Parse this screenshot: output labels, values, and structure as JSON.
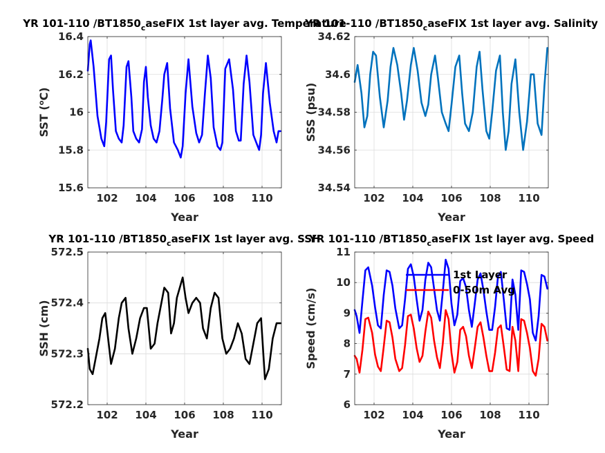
{
  "chart_data": [
    {
      "type": "line",
      "title": "YR 101-110 /BT1850_caseFIX 1st layer avg. Temperature",
      "xlabel": "Year",
      "ylabel": "SST (°C)",
      "xlim": [
        101,
        111
      ],
      "ylim": [
        15.6,
        16.4
      ],
      "xticks": [
        "102",
        "104",
        "106",
        "108",
        "110"
      ],
      "yticks": [
        "15.6",
        "15.8",
        "16",
        "16.2",
        "16.4"
      ],
      "grid": true,
      "series": [
        {
          "color": "#0000ff",
          "x": [
            101.0,
            101.1,
            101.15,
            101.3,
            101.5,
            101.7,
            101.85,
            101.95,
            102.1,
            102.2,
            102.3,
            102.45,
            102.6,
            102.75,
            102.85,
            103.0,
            103.1,
            103.25,
            103.35,
            103.5,
            103.65,
            103.8,
            103.9,
            104.0,
            104.1,
            104.25,
            104.4,
            104.55,
            104.7,
            104.85,
            104.95,
            105.1,
            105.25,
            105.45,
            105.65,
            105.8,
            105.9,
            106.05,
            106.2,
            106.4,
            106.6,
            106.75,
            106.9,
            107.05,
            107.2,
            107.35,
            107.5,
            107.7,
            107.85,
            107.95,
            108.1,
            108.3,
            108.5,
            108.65,
            108.8,
            108.9,
            109.05,
            109.2,
            109.35,
            109.55,
            109.7,
            109.85,
            109.95,
            110.05,
            110.2,
            110.4,
            110.6,
            110.75,
            110.85,
            110.95
          ],
          "y": [
            16.22,
            16.36,
            16.38,
            16.24,
            15.98,
            15.86,
            15.82,
            15.95,
            16.28,
            16.3,
            16.12,
            15.9,
            15.86,
            15.84,
            15.93,
            16.24,
            16.27,
            16.08,
            15.9,
            15.86,
            15.84,
            15.91,
            16.16,
            16.24,
            16.08,
            15.93,
            15.86,
            15.84,
            15.9,
            16.07,
            16.2,
            16.26,
            16.02,
            15.84,
            15.8,
            15.76,
            15.82,
            16.1,
            16.28,
            16.03,
            15.89,
            15.84,
            15.88,
            16.1,
            16.3,
            16.18,
            15.92,
            15.82,
            15.8,
            15.84,
            16.23,
            16.28,
            16.12,
            15.9,
            15.85,
            15.85,
            16.15,
            16.3,
            16.16,
            15.88,
            15.84,
            15.8,
            15.88,
            16.1,
            16.26,
            16.05,
            15.9,
            15.84,
            15.9,
            15.9
          ]
        }
      ]
    },
    {
      "type": "line",
      "title": "YR 101-110 /BT1850_caseFIX 1st layer avg. Salinity",
      "xlabel": "Year",
      "ylabel": "SSS (psu)",
      "xlim": [
        101,
        111
      ],
      "ylim": [
        34.54,
        34.62
      ],
      "xticks": [
        "102",
        "104",
        "106",
        "108",
        "110"
      ],
      "yticks": [
        "34.54",
        "34.56",
        "34.58",
        "34.6",
        "34.62"
      ],
      "grid": true,
      "series": [
        {
          "color": "#0072bd",
          "x": [
            101.0,
            101.15,
            101.35,
            101.5,
            101.65,
            101.8,
            101.95,
            102.1,
            102.3,
            102.5,
            102.7,
            102.85,
            103.0,
            103.2,
            103.4,
            103.55,
            103.7,
            103.9,
            104.05,
            104.25,
            104.45,
            104.65,
            104.8,
            104.95,
            105.15,
            105.3,
            105.5,
            105.7,
            105.85,
            106.0,
            106.2,
            106.4,
            106.55,
            106.7,
            106.9,
            107.1,
            107.3,
            107.45,
            107.6,
            107.8,
            107.95,
            108.1,
            108.3,
            108.5,
            108.65,
            108.8,
            108.95,
            109.1,
            109.3,
            109.5,
            109.7,
            109.9,
            110.1,
            110.25,
            110.45,
            110.65,
            110.8,
            110.95
          ],
          "y": [
            34.596,
            34.605,
            34.59,
            34.572,
            34.578,
            34.6,
            34.612,
            34.61,
            34.588,
            34.572,
            34.586,
            34.604,
            34.614,
            34.605,
            34.59,
            34.576,
            34.586,
            34.605,
            34.614,
            34.602,
            34.585,
            34.578,
            34.584,
            34.6,
            34.61,
            34.598,
            34.58,
            34.574,
            34.57,
            34.584,
            34.604,
            34.61,
            34.59,
            34.574,
            34.57,
            34.58,
            34.604,
            34.612,
            34.592,
            34.57,
            34.566,
            34.58,
            34.602,
            34.61,
            34.58,
            34.56,
            34.57,
            34.595,
            34.608,
            34.58,
            34.56,
            34.575,
            34.6,
            34.6,
            34.574,
            34.568,
            34.594,
            34.614
          ]
        }
      ]
    },
    {
      "type": "line",
      "title": "YR 101-110 /BT1850_caseFIX 1st layer avg. SSH",
      "xlabel": "Year",
      "ylabel": "SSH (cm)",
      "xlim": [
        101,
        111
      ],
      "ylim": [
        572.2,
        572.5
      ],
      "xticks": [
        "102",
        "104",
        "106",
        "108",
        "110"
      ],
      "yticks": [
        "572.2",
        "572.3",
        "572.4",
        "572.5"
      ],
      "grid": true,
      "series": [
        {
          "color": "#000000",
          "x": [
            101.0,
            101.1,
            101.25,
            101.4,
            101.6,
            101.75,
            101.9,
            102.05,
            102.2,
            102.4,
            102.6,
            102.75,
            102.95,
            103.1,
            103.3,
            103.5,
            103.7,
            103.9,
            104.05,
            104.25,
            104.45,
            104.6,
            104.8,
            104.95,
            105.15,
            105.3,
            105.45,
            105.6,
            105.75,
            105.9,
            106.05,
            106.2,
            106.4,
            106.6,
            106.8,
            106.95,
            107.15,
            107.35,
            107.55,
            107.75,
            107.95,
            108.15,
            108.35,
            108.55,
            108.75,
            108.95,
            109.15,
            109.35,
            109.55,
            109.75,
            109.95,
            110.15,
            110.35,
            110.55,
            110.75,
            110.95
          ],
          "y": [
            572.31,
            572.27,
            572.26,
            572.29,
            572.33,
            572.37,
            572.38,
            572.33,
            572.28,
            572.31,
            572.37,
            572.4,
            572.41,
            572.35,
            572.3,
            572.33,
            572.37,
            572.39,
            572.39,
            572.31,
            572.32,
            572.36,
            572.4,
            572.43,
            572.42,
            572.34,
            572.36,
            572.41,
            572.43,
            572.45,
            572.41,
            572.38,
            572.4,
            572.41,
            572.4,
            572.35,
            572.33,
            572.39,
            572.42,
            572.41,
            572.33,
            572.3,
            572.31,
            572.33,
            572.36,
            572.34,
            572.29,
            572.28,
            572.32,
            572.36,
            572.37,
            572.25,
            572.27,
            572.33,
            572.36,
            572.36
          ]
        }
      ]
    },
    {
      "type": "line",
      "title": "YR 101-110 /BT1850_caseFIX 1st layer avg. Speed",
      "xlabel": "Year",
      "ylabel": "Speed (cm/s)",
      "xlim": [
        101,
        111
      ],
      "ylim": [
        6,
        11
      ],
      "xticks": [
        "102",
        "104",
        "106",
        "108",
        "110"
      ],
      "yticks": [
        "6",
        "7",
        "8",
        "9",
        "10",
        "11"
      ],
      "grid": true,
      "legend": {
        "location": "top-center",
        "entries": [
          "1st Layer",
          "0-50m Avg"
        ]
      },
      "series": [
        {
          "name": "1st Layer",
          "color": "#0000ff",
          "x": [
            101.0,
            101.1,
            101.25,
            101.4,
            101.55,
            101.7,
            101.9,
            102.05,
            102.2,
            102.35,
            102.5,
            102.65,
            102.8,
            102.95,
            103.1,
            103.3,
            103.45,
            103.6,
            103.75,
            103.9,
            104.05,
            104.2,
            104.35,
            104.5,
            104.65,
            104.8,
            104.95,
            105.1,
            105.25,
            105.4,
            105.55,
            105.7,
            105.85,
            106.0,
            106.15,
            106.3,
            106.45,
            106.6,
            106.75,
            106.9,
            107.05,
            107.2,
            107.35,
            107.5,
            107.65,
            107.8,
            107.95,
            108.1,
            108.25,
            108.4,
            108.55,
            108.7,
            108.85,
            109.0,
            109.15,
            109.3,
            109.45,
            109.6,
            109.75,
            109.9,
            110.05,
            110.2,
            110.35,
            110.5,
            110.65,
            110.8,
            110.95
          ],
          "y": [
            9.1,
            8.9,
            8.35,
            9.4,
            10.4,
            10.5,
            9.9,
            9.2,
            8.6,
            8.5,
            9.6,
            10.4,
            10.35,
            9.9,
            9.15,
            8.5,
            8.6,
            9.45,
            10.45,
            10.6,
            10.2,
            9.45,
            8.75,
            9.1,
            10.1,
            10.65,
            10.5,
            9.8,
            9.1,
            8.75,
            9.7,
            10.75,
            10.45,
            9.3,
            8.6,
            8.95,
            10.05,
            10.15,
            9.85,
            9.1,
            8.55,
            9.3,
            10.1,
            10.3,
            9.75,
            9.05,
            8.45,
            8.45,
            9.2,
            10.2,
            10.35,
            9.45,
            8.5,
            8.45,
            10.1,
            9.6,
            8.45,
            10.4,
            10.35,
            9.95,
            9.45,
            8.35,
            8.1,
            8.9,
            10.25,
            10.2,
            9.8
          ]
        },
        {
          "name": "0-50m Avg",
          "color": "#ff0000",
          "x": [
            101.0,
            101.1,
            101.25,
            101.4,
            101.55,
            101.7,
            101.9,
            102.05,
            102.2,
            102.35,
            102.5,
            102.65,
            102.8,
            102.95,
            103.1,
            103.3,
            103.45,
            103.6,
            103.75,
            103.9,
            104.05,
            104.2,
            104.35,
            104.5,
            104.65,
            104.8,
            104.95,
            105.1,
            105.25,
            105.4,
            105.55,
            105.7,
            105.85,
            106.0,
            106.15,
            106.3,
            106.45,
            106.6,
            106.75,
            106.9,
            107.05,
            107.2,
            107.35,
            107.5,
            107.65,
            107.8,
            107.95,
            108.1,
            108.25,
            108.4,
            108.55,
            108.7,
            108.85,
            109.0,
            109.15,
            109.3,
            109.45,
            109.6,
            109.75,
            109.9,
            110.05,
            110.2,
            110.35,
            110.5,
            110.65,
            110.8,
            110.95
          ],
          "y": [
            7.6,
            7.5,
            7.05,
            7.8,
            8.8,
            8.85,
            8.35,
            7.65,
            7.25,
            7.1,
            7.9,
            8.75,
            8.7,
            8.2,
            7.5,
            7.1,
            7.2,
            7.95,
            8.9,
            8.95,
            8.5,
            7.85,
            7.4,
            7.6,
            8.4,
            9.05,
            8.85,
            8.1,
            7.55,
            7.2,
            8.0,
            9.1,
            8.8,
            7.7,
            7.05,
            7.4,
            8.45,
            8.55,
            8.25,
            7.6,
            7.2,
            7.85,
            8.55,
            8.7,
            8.2,
            7.6,
            7.1,
            7.1,
            7.7,
            8.5,
            8.6,
            7.9,
            7.15,
            7.1,
            8.55,
            8.1,
            7.1,
            8.8,
            8.75,
            8.35,
            7.85,
            7.1,
            6.95,
            7.5,
            8.65,
            8.55,
            8.1
          ]
        }
      ]
    }
  ]
}
